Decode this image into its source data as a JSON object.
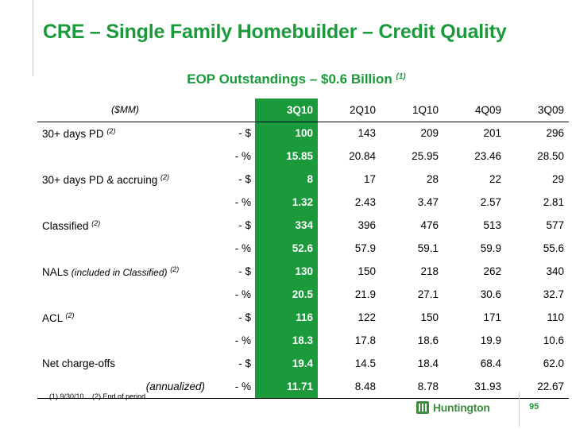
{
  "slide": {
    "title": "CRE – Single Family Homebuilder – Credit Quality",
    "subtitle": "EOP Outstandings – $0.6 Billion",
    "subtitle_note": "(1)",
    "page_number": "95",
    "logo_text": "Huntington"
  },
  "table": {
    "header_label": "($MM)",
    "periods": [
      "3Q10",
      "2Q10",
      "1Q10",
      "4Q09",
      "3Q09"
    ],
    "rows": [
      {
        "label": "30+ days PD",
        "label_italic": "",
        "note": "(2)",
        "unit": "- $",
        "values": [
          "100",
          "143",
          "209",
          "201",
          "296"
        ]
      },
      {
        "label": "",
        "label_italic": "",
        "note": "",
        "unit": "- %",
        "values": [
          "15.85",
          "20.84",
          "25.95",
          "23.46",
          "28.50"
        ]
      },
      {
        "label": "30+ days PD & accruing",
        "label_italic": "",
        "note": "(2)",
        "unit": "- $",
        "values": [
          "8",
          "17",
          "28",
          "22",
          "29"
        ]
      },
      {
        "label": "",
        "label_italic": "",
        "note": "",
        "unit": "- %",
        "values": [
          "1.32",
          "2.43",
          "3.47",
          "2.57",
          "2.81"
        ]
      },
      {
        "label": "Classified",
        "label_italic": "",
        "note": "(2)",
        "unit": "- $",
        "values": [
          "334",
          "396",
          "476",
          "513",
          "577"
        ]
      },
      {
        "label": "",
        "label_italic": "",
        "note": "",
        "unit": "- %",
        "values": [
          "52.6",
          "57.9",
          "59.1",
          "59.9",
          "55.6"
        ]
      },
      {
        "label": "NALs",
        "label_italic": "(included in Classified)",
        "note": "(2)",
        "unit": "- $",
        "values": [
          "130",
          "150",
          "218",
          "262",
          "340"
        ]
      },
      {
        "label": "",
        "label_italic": "",
        "note": "",
        "unit": "- %",
        "values": [
          "20.5",
          "21.9",
          "27.1",
          "30.6",
          "32.7"
        ]
      },
      {
        "label": "ACL ",
        "label_italic": "",
        "note": "(2)",
        "unit": "- $",
        "values": [
          "116",
          "122",
          "150",
          "171",
          "110"
        ]
      },
      {
        "label": "",
        "label_italic": "",
        "note": "",
        "unit": "- %",
        "values": [
          "18.3",
          "17.8",
          "18.6",
          "19.9",
          "10.6"
        ]
      },
      {
        "label": "Net charge-offs",
        "label_italic": "",
        "note": "",
        "unit": "- $",
        "values": [
          "19.4",
          "14.5",
          "18.4",
          "68.4",
          "62.0"
        ]
      },
      {
        "label": "",
        "label_italic": "(annualized)",
        "note": "",
        "unit": "- %",
        "values": [
          "11.71",
          "8.48",
          "8.78",
          "31.93",
          "22.67"
        ]
      }
    ]
  },
  "footnotes": [
    "(1)  9/30/10",
    "(2)   End of period"
  ],
  "colors": {
    "brand_green": "#1a9a3a",
    "logo_green": "#3f8c3f"
  }
}
